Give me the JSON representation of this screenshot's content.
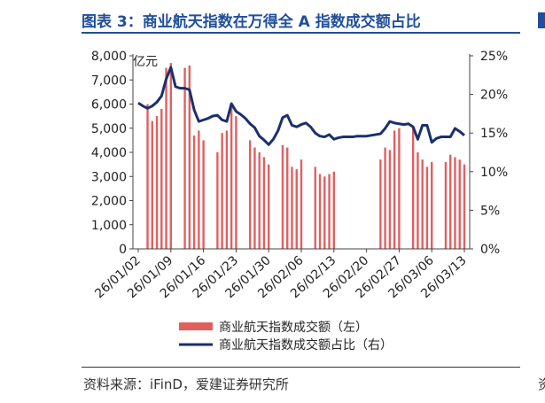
{
  "header": {
    "title": "图表 3：商业航天指数在万得全 A 指数成交额占比"
  },
  "footer": {
    "source": "资料来源：iFinD，爱建证券研究所"
  },
  "edge": {
    "left_glyph": "资"
  },
  "chart_data": {
    "type": "bar+line",
    "unit_label": "亿元",
    "left_axis": {
      "min": 0,
      "max": 8000,
      "ticks": [
        "0",
        "1,000",
        "2,000",
        "3,000",
        "4,000",
        "5,000",
        "6,000",
        "7,000",
        "8,000"
      ]
    },
    "right_axis": {
      "min": 0,
      "max": 25,
      "ticks": [
        "0%",
        "5%",
        "10%",
        "15%",
        "20%",
        "25%"
      ]
    },
    "x_tick_labels": [
      "26/01/02",
      "26/01/09",
      "26/01/16",
      "26/01/23",
      "26/01/30",
      "26/02/06",
      "26/02/13",
      "26/02/20",
      "26/02/27",
      "26/03/06",
      "26/03/13"
    ],
    "legend": {
      "bar": "商业航天指数成交额（左）",
      "line": "商业航天指数成交额占比（右）"
    },
    "colors": {
      "bar": "#e06060",
      "line": "#1a2f6e"
    },
    "x": [
      "26/01/02",
      "26/01/03",
      "26/01/04",
      "26/01/05",
      "26/01/06",
      "26/01/07",
      "26/01/08",
      "26/01/09",
      "26/01/10",
      "26/01/11",
      "26/01/12",
      "26/01/13",
      "26/01/14",
      "26/01/15",
      "26/01/16",
      "26/01/17",
      "26/01/18",
      "26/01/19",
      "26/01/20",
      "26/01/21",
      "26/01/22",
      "26/01/23",
      "26/01/24",
      "26/01/25",
      "26/01/26",
      "26/01/27",
      "26/01/28",
      "26/01/29",
      "26/01/30",
      "26/01/31",
      "26/02/01",
      "26/02/02",
      "26/02/03",
      "26/02/04",
      "26/02/05",
      "26/02/06",
      "26/02/07",
      "26/02/08",
      "26/02/09",
      "26/02/10",
      "26/02/11",
      "26/02/12",
      "26/02/13",
      "26/02/14",
      "26/02/15",
      "26/02/16",
      "26/02/17",
      "26/02/18",
      "26/02/19",
      "26/02/20",
      "26/02/21",
      "26/02/22",
      "26/02/23",
      "26/02/24",
      "26/02/25",
      "26/02/26",
      "26/02/27",
      "26/02/28",
      "26/03/01",
      "26/03/02",
      "26/03/03",
      "26/03/04",
      "26/03/05",
      "26/03/06",
      "26/03/07",
      "26/03/08",
      "26/03/09",
      "26/03/10",
      "26/03/11",
      "26/03/12",
      "26/03/13"
    ],
    "series": [
      {
        "kind": "bar",
        "values": [
          null,
          null,
          6000,
          5300,
          5500,
          5800,
          7500,
          7700,
          null,
          null,
          7500,
          7600,
          4700,
          4900,
          4500,
          null,
          null,
          4000,
          4800,
          4900,
          6000,
          5500,
          null,
          null,
          4500,
          4200,
          4000,
          3800,
          3500,
          null,
          null,
          4300,
          4200,
          3400,
          3300,
          3700,
          null,
          null,
          3400,
          3100,
          3000,
          3100,
          3200,
          null,
          null,
          null,
          null,
          null,
          null,
          null,
          null,
          null,
          3700,
          4200,
          4100,
          4900,
          5000,
          null,
          null,
          5000,
          4000,
          3700,
          3400,
          3600,
          null,
          null,
          3600,
          3900,
          3800,
          3700,
          3500
        ]
      },
      {
        "kind": "line",
        "values": [
          18.9,
          18.5,
          18.2,
          18.5,
          19.0,
          19.8,
          22.0,
          23.5,
          21.0,
          20.8,
          20.8,
          20.6,
          18.0,
          16.5,
          16.7,
          16.9,
          17.2,
          17.3,
          16.7,
          16.5,
          18.8,
          17.8,
          17.4,
          16.9,
          16.2,
          15.7,
          14.6,
          14.1,
          13.5,
          14.2,
          15.3,
          17.0,
          17.3,
          16.0,
          15.8,
          16.1,
          16.3,
          15.8,
          15.0,
          14.6,
          14.5,
          14.8,
          14.2,
          14.4,
          14.5,
          14.5,
          14.5,
          14.6,
          14.6,
          14.6,
          14.7,
          14.8,
          14.9,
          15.6,
          16.5,
          16.3,
          16.2,
          16.1,
          16.2,
          15.8,
          14.2,
          16.0,
          16.0,
          13.8,
          14.3,
          14.5,
          14.5,
          14.5,
          15.6,
          15.2,
          14.7
        ]
      }
    ]
  }
}
